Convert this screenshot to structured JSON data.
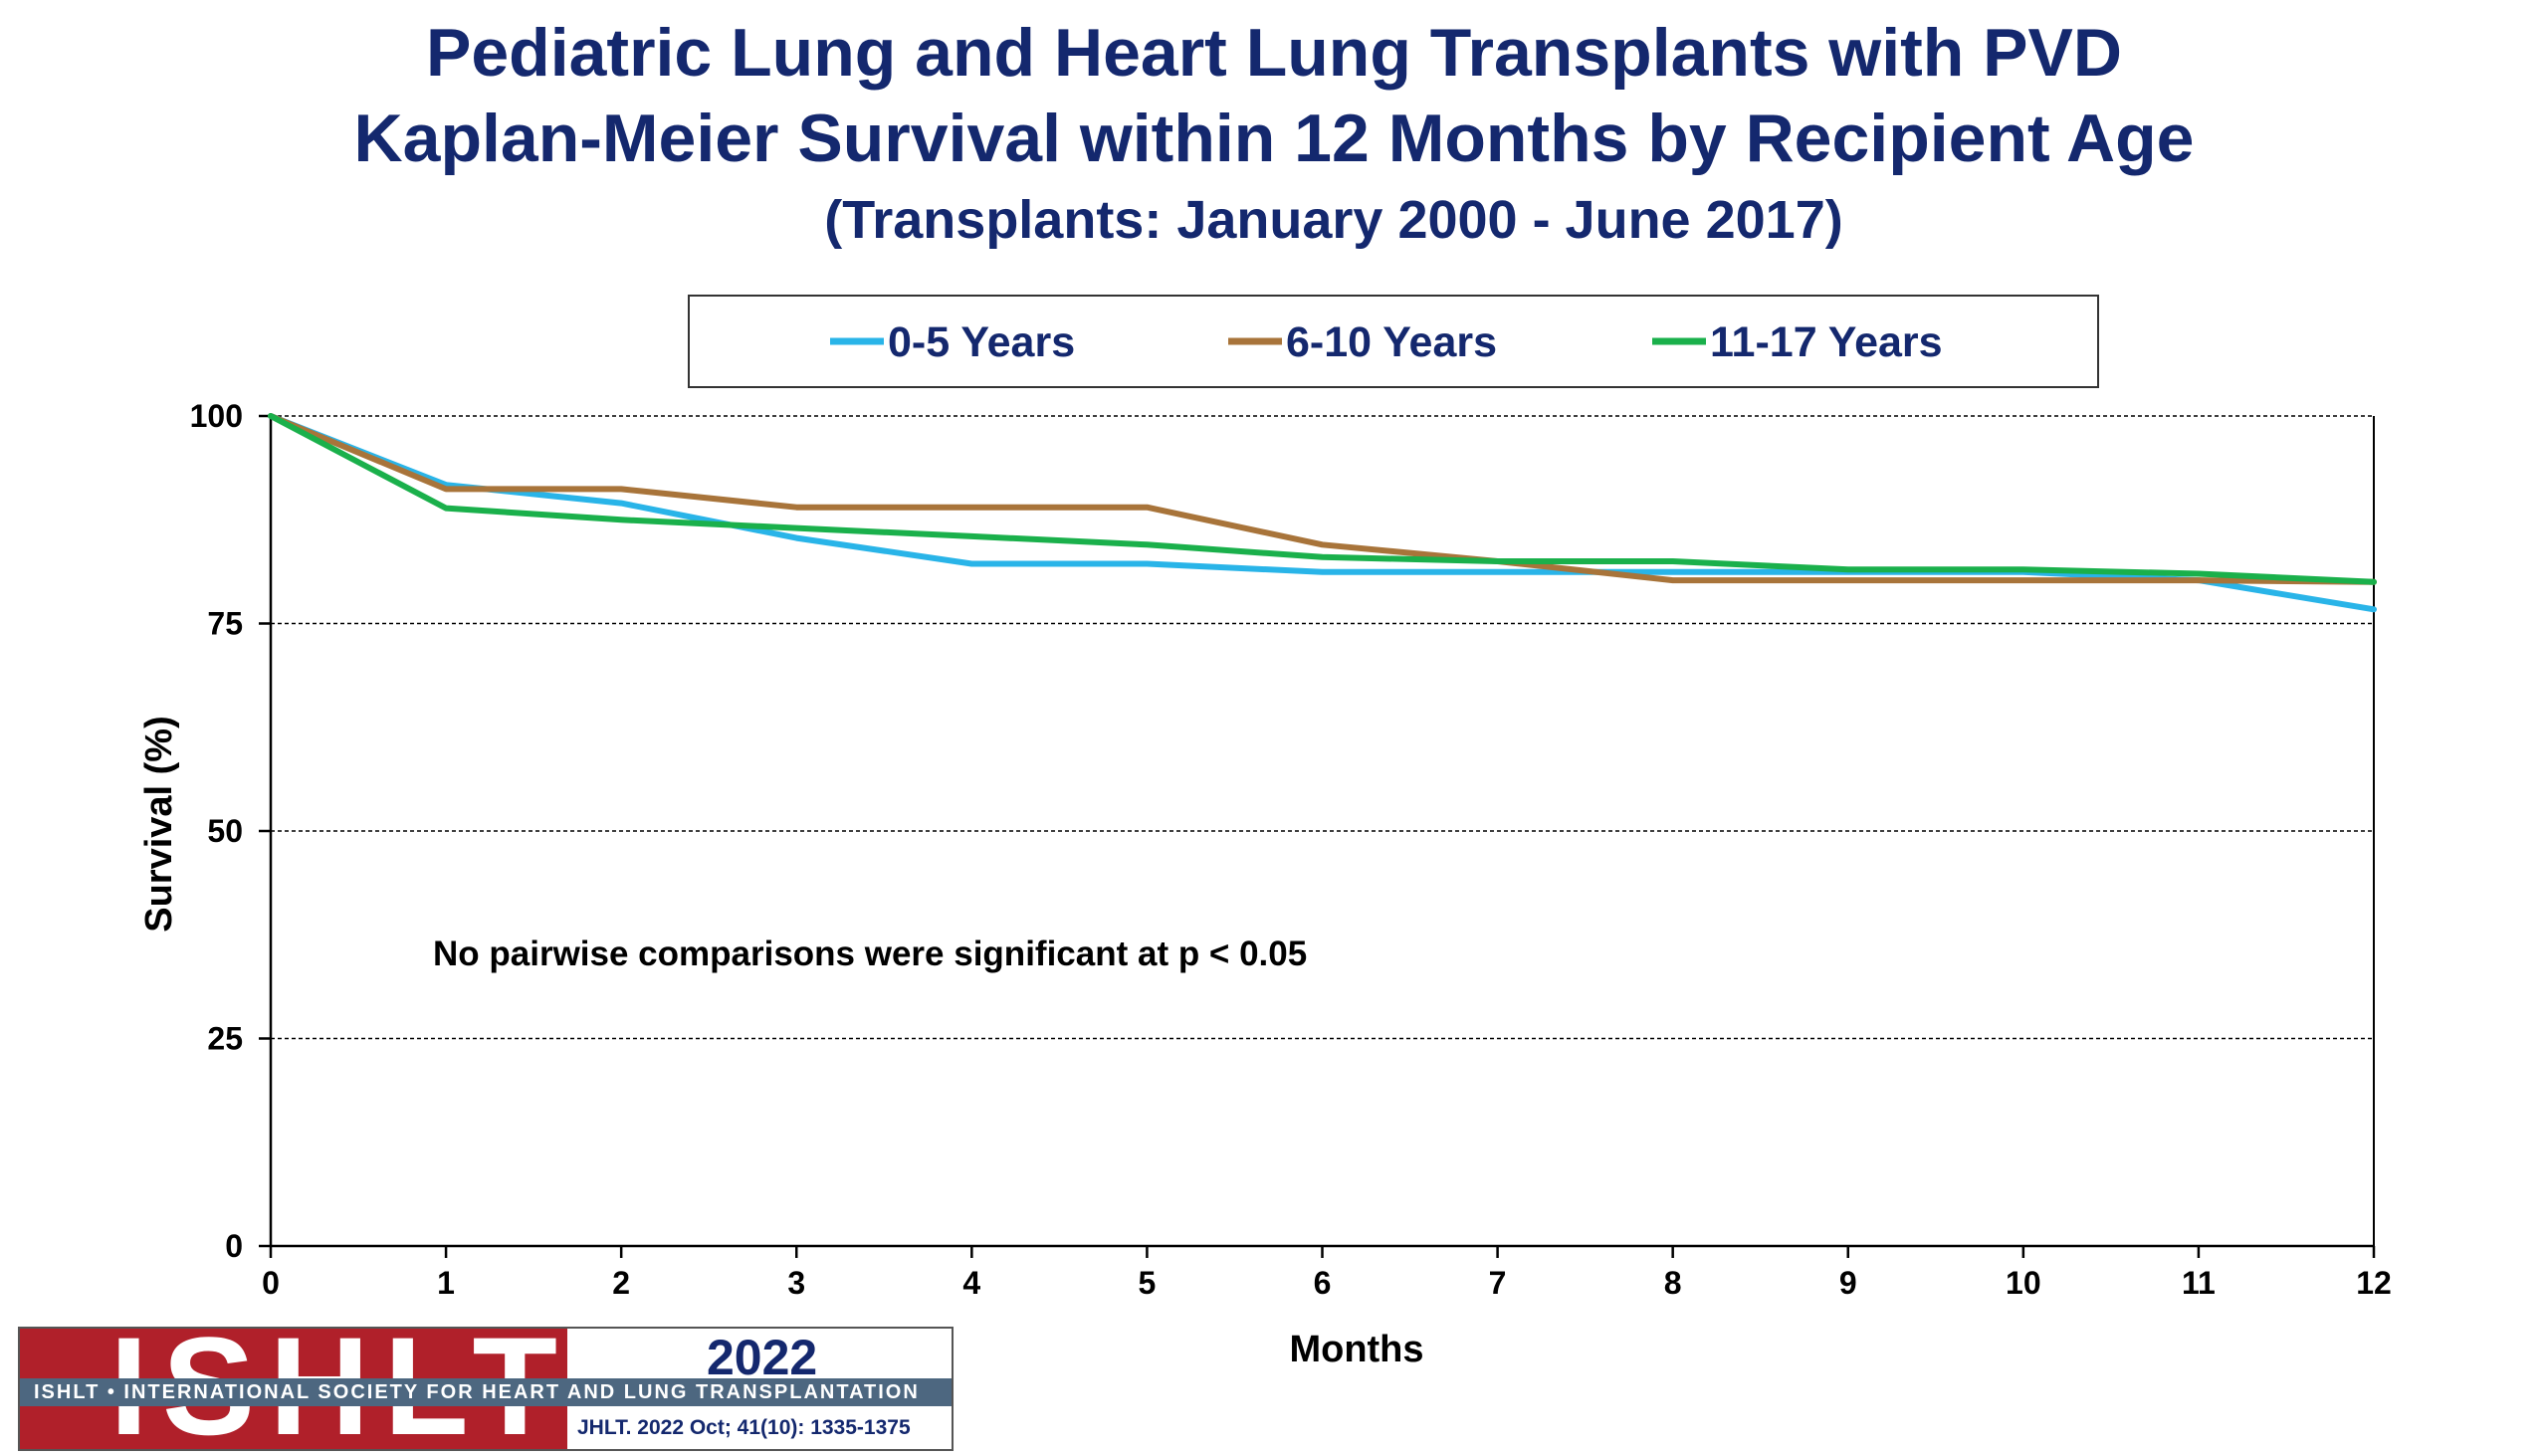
{
  "header": {
    "title_line1": "Pediatric Lung and Heart Lung Transplants with PVD",
    "title_line2": "Kaplan-Meier Survival within 12 Months by Recipient Age",
    "subtitle": "(Transplants: January 2000 - June 2017)"
  },
  "chart_data": {
    "type": "line",
    "title": "Pediatric Lung and Heart Lung Transplants with PVD Kaplan-Meier Survival within 12 Months by Recipient Age",
    "subtitle": "(Transplants: January 2000 - June 2017)",
    "xlabel": "Months",
    "ylabel": "Survival (%)",
    "xlim": [
      0,
      12
    ],
    "ylim": [
      0,
      100
    ],
    "x_ticks": [
      "0",
      "1",
      "2",
      "3",
      "4",
      "5",
      "6",
      "7",
      "8",
      "9",
      "10",
      "11",
      "12"
    ],
    "y_ticks": [
      "0",
      "25",
      "50",
      "75",
      "100"
    ],
    "grid": "horizontal dashed at 25, 50, 75",
    "legend_position": "top-center",
    "x": [
      0,
      1,
      2,
      3,
      4,
      5,
      6,
      7,
      8,
      9,
      10,
      11,
      12
    ],
    "series": [
      {
        "name": "0-5 Years",
        "color": "#29b4e8",
        "values": [
          100,
          91.7,
          89.5,
          85.3,
          82.2,
          82.2,
          81.2,
          81.2,
          81.2,
          81.2,
          81.2,
          80.2,
          76.7
        ]
      },
      {
        "name": "6-10 Years",
        "color": "#a8743a",
        "values": [
          100,
          91.2,
          91.2,
          89.0,
          89.0,
          89.0,
          84.5,
          82.5,
          80.2,
          80.2,
          80.2,
          80.2,
          80.0
        ]
      },
      {
        "name": "11-17 Years",
        "color": "#1ab04b",
        "values": [
          100,
          88.9,
          87.5,
          86.5,
          85.5,
          84.5,
          83.0,
          82.5,
          82.5,
          81.5,
          81.5,
          81.0,
          80.0
        ]
      }
    ],
    "annotation": "No pairwise comparisons were significant at p < 0.05"
  },
  "logo": {
    "name": "ISHLT",
    "band": "ISHLT • INTERNATIONAL SOCIETY FOR HEART AND LUNG TRANSPLANTATION",
    "year": "2022",
    "citation": "JHLT. 2022 Oct; 41(10): 1335-1375"
  }
}
